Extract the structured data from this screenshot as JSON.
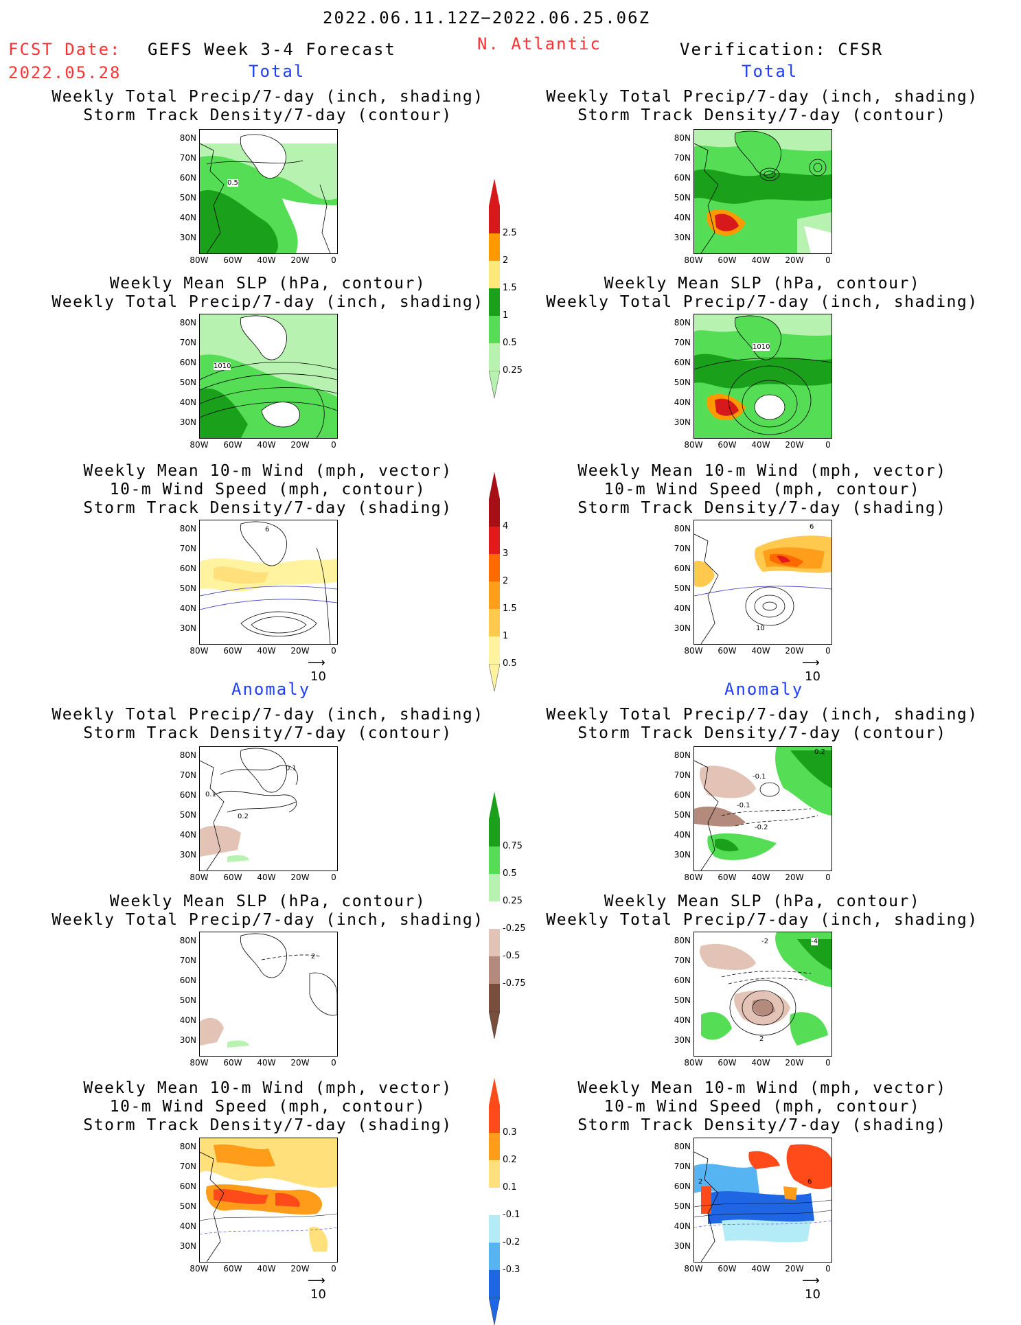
{
  "header": {
    "date_range": "2022.06.11.12Z−2022.06.25.06Z",
    "fcst_label": "FCST Date:",
    "fcst_date": "2022.05.28",
    "product": "GEFS Week 3-4 Forecast",
    "region": "N. Atlantic",
    "verification": "Verification: CFSR"
  },
  "sections": {
    "total": "Total",
    "anomaly": "Anomaly"
  },
  "titles": {
    "precip_std": [
      "Weekly Total Precip/7-day (inch, shading)",
      "Storm Track Density/7-day (contour)"
    ],
    "slp_precip": [
      "Weekly Mean SLP (hPa, contour)",
      "Weekly Total Precip/7-day (inch, shading)"
    ],
    "wind_std": [
      "Weekly Mean 10-m Wind (mph, vector)",
      "10-m Wind Speed (mph, contour)",
      "Storm Track Density/7-day (shading)"
    ]
  },
  "axes": {
    "lat": [
      "80N",
      "70N",
      "60N",
      "50N",
      "40N",
      "30N"
    ],
    "lon": [
      "80W",
      "60W",
      "40W",
      "20W",
      "0"
    ]
  },
  "contour_labels": {
    "fcst_total_precip": "0.5",
    "fcst_total_slp": "1010",
    "obs_total_slp": "1010",
    "fcst_total_wind": "6",
    "obs_total_wind_a": "6",
    "obs_total_wind_b": "10",
    "fcst_anom_precip_a": "0.1",
    "fcst_anom_precip_b": "0.1",
    "fcst_anom_precip_c": "0.2",
    "obs_anom_precip_a": "0.2",
    "obs_anom_precip_b": "-0.1",
    "obs_anom_precip_c": "-0.1",
    "obs_anom_precip_d": "-0.2",
    "fcst_anom_slp": "2",
    "obs_anom_slp_a": "-2",
    "obs_anom_slp_b": "-4",
    "obs_anom_slp_c": "2",
    "obs_anom_wind_a": "2",
    "obs_anom_wind_b": "6"
  },
  "vector_ref": "10",
  "colorbars": {
    "precip_total": {
      "labels": [
        "2.5",
        "2",
        "1.5",
        "1",
        "0.5",
        "0.25"
      ],
      "colors": [
        "#d7191c",
        "#ff9900",
        "#ffe87a",
        "#1aa01a",
        "#55dd55",
        "#b7f2b0"
      ]
    },
    "storm_total": {
      "labels": [
        "4",
        "3",
        "2",
        "1.5",
        "1",
        "0.5"
      ],
      "colors": [
        "#a50f15",
        "#e31a1c",
        "#ff6a00",
        "#ff9e1a",
        "#ffc94d",
        "#fff3a0"
      ]
    },
    "precip_anom": {
      "labels": [
        "0.75",
        "0.5",
        "0.25",
        "-0.25",
        "-0.5",
        "-0.75"
      ],
      "colors": [
        "#1aa01a",
        "#55dd55",
        "#b7f2b0",
        "#ffffff",
        "#e2c3b6",
        "#b48a7c",
        "#7a4e3c"
      ]
    },
    "storm_anom": {
      "labels": [
        "0.3",
        "0.2",
        "0.1",
        "-0.1",
        "-0.2",
        "-0.3"
      ],
      "colors": [
        "#ff4a1a",
        "#ff9d1a",
        "#ffe07a",
        "#ffffff",
        "#b3ecf7",
        "#56b4f2",
        "#1f66e5"
      ]
    }
  }
}
